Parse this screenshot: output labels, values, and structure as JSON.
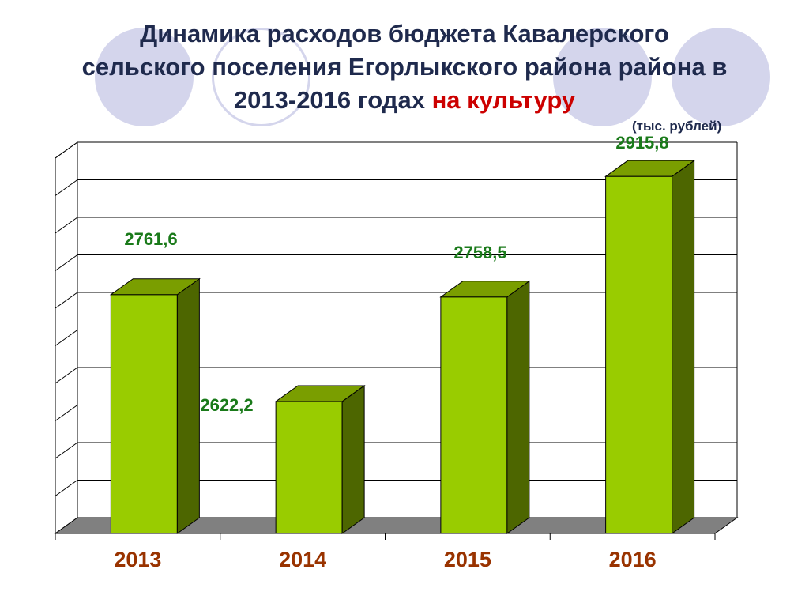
{
  "title": {
    "line1": "Динамика расходов бюджета Кавалерского",
    "line2": "сельского поселения Егорлыкского района района в",
    "line3_main": "2013-2016 годах ",
    "line3_accent": "на культуру"
  },
  "unit_label": "(тыс. рублей)",
  "colors": {
    "bar_front": "#99cc00",
    "bar_top": "#7a9e00",
    "bar_side": "#4d6600",
    "value_label": "#1a7a1a",
    "category_label": "#993300",
    "title": "#1f2a4d",
    "title_accent": "#cc0000",
    "floor": "#808080",
    "decor": "#d4d5ec"
  },
  "chart_data": {
    "type": "bar",
    "categories": [
      "2013",
      "2014",
      "2015",
      "2016"
    ],
    "values": [
      2761.6,
      2622.2,
      2758.5,
      2915.8
    ],
    "value_labels": [
      "2761,6",
      "2622,2",
      "2758,5",
      "2915,8"
    ],
    "ylabel": "тыс. рублей",
    "ylim": [
      2450,
      2950
    ],
    "grid": true,
    "legend": "none",
    "three_d": true
  }
}
